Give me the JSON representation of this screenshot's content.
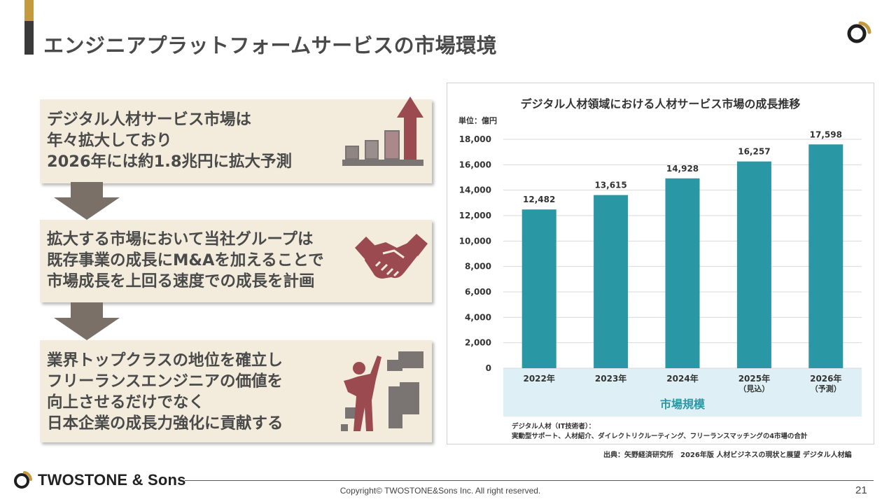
{
  "page": {
    "title": "エンジニアプラットフォームサービスの市場環境",
    "number": "21"
  },
  "colors": {
    "bar": "#2a97a5",
    "gold_accent": "#c49a3e",
    "dark_accent": "#3a3a3a",
    "card_bg": "#f3ecdc",
    "illustration": "#9b4a4f",
    "market_band": "#def0f5"
  },
  "steps": [
    {
      "lines": [
        "デジタル人材サービス市場は",
        "年々拡大しており",
        "2026年には約1.8兆円に拡大予測"
      ],
      "icon": "growth-chart-icon"
    },
    {
      "lines": [
        "拡大する市場において当社グループは",
        "既存事業の成長にM&Aを加えることで",
        "市場成長を上回る速度での成長を計画"
      ],
      "icon": "handshake-icon"
    },
    {
      "lines": [
        "業界トップクラスの地位を確立し",
        "フリーランスエンジニアの価値を",
        "向上させるだけでなく",
        "日本企業の成長力強化に貢献する"
      ],
      "icon": "climbing-person-icon"
    }
  ],
  "chart_data": {
    "type": "bar",
    "title": "デジタル人材領域における人材サービス市場の成長推移",
    "unit": "単位：億円",
    "categories": [
      {
        "label": "2022年",
        "sub": ""
      },
      {
        "label": "2023年",
        "sub": ""
      },
      {
        "label": "2024年",
        "sub": ""
      },
      {
        "label": "2025年",
        "sub": "（見込）"
      },
      {
        "label": "2026年",
        "sub": "（予測）"
      }
    ],
    "values": [
      12482,
      13615,
      14928,
      16257,
      17598
    ],
    "value_labels": [
      "12,482",
      "13,615",
      "14,928",
      "16,257",
      "17,598"
    ],
    "yticks": [
      "0",
      "2,000",
      "4,000",
      "6,000",
      "8,000",
      "10,000",
      "12,000",
      "14,000",
      "16,000",
      "18,000"
    ],
    "ylim": [
      0,
      18000
    ],
    "grid": true,
    "xlabel": "市場規模",
    "note_lines": [
      "デジタル人材（IT技術者）：",
      "実動型サポート、人材紹介、ダイレクトリクルーティング、フリーランスマッチングの4市場の合計"
    ],
    "source": "出典：矢野経済研究所　2026年版 人材ビジネスの現状と展望 デジタル人材編"
  },
  "footer": {
    "brand": "TWOSTONE & Sons",
    "copyright": "Copyright© TWOSTONE&Sons Inc. All right reserved."
  }
}
